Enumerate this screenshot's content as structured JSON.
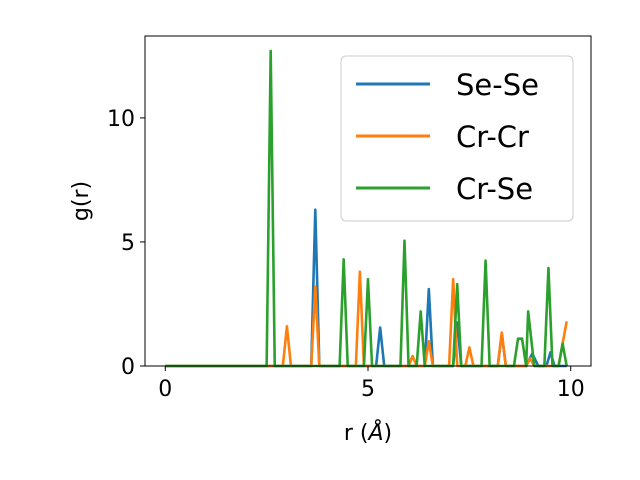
{
  "chart_data": {
    "type": "line",
    "xlabel": "r (",
    "xlabel_unit": "Å",
    "xlabel_close": ")",
    "ylabel": "g(r)",
    "xlim": [
      -0.5,
      10.5
    ],
    "ylim": [
      0,
      13.3
    ],
    "xticks": [
      0,
      5,
      10
    ],
    "yticks": [
      0,
      5,
      10
    ],
    "grid": false,
    "legend_position": "top-right",
    "series": [
      {
        "name": "Se-Se",
        "color": "#1f77b4",
        "points": [
          [
            0,
            0
          ],
          [
            3.6,
            0
          ],
          [
            3.7,
            6.3
          ],
          [
            3.8,
            0
          ],
          [
            5.2,
            0
          ],
          [
            5.3,
            1.55
          ],
          [
            5.4,
            0
          ],
          [
            6.4,
            0
          ],
          [
            6.5,
            3.1
          ],
          [
            6.6,
            0
          ],
          [
            7.1,
            0
          ],
          [
            7.2,
            1.75
          ],
          [
            7.3,
            0
          ],
          [
            8.2,
            0
          ],
          [
            8.3,
            1.3
          ],
          [
            8.4,
            0
          ],
          [
            8.9,
            0
          ],
          [
            9.05,
            0.5
          ],
          [
            9.2,
            0
          ],
          [
            9.4,
            0
          ],
          [
            9.5,
            0.55
          ],
          [
            9.6,
            0
          ],
          [
            9.9,
            0
          ]
        ]
      },
      {
        "name": "Cr-Cr",
        "color": "#ff7f0e",
        "points": [
          [
            0,
            0
          ],
          [
            2.9,
            0
          ],
          [
            3.0,
            1.6
          ],
          [
            3.1,
            0
          ],
          [
            3.6,
            0
          ],
          [
            3.7,
            3.2
          ],
          [
            3.8,
            0
          ],
          [
            4.7,
            0
          ],
          [
            4.8,
            3.8
          ],
          [
            4.9,
            0
          ],
          [
            6.0,
            0
          ],
          [
            6.1,
            0.4
          ],
          [
            6.2,
            0
          ],
          [
            6.4,
            0
          ],
          [
            6.5,
            1.0
          ],
          [
            6.6,
            0
          ],
          [
            7.0,
            0
          ],
          [
            7.1,
            3.5
          ],
          [
            7.2,
            0
          ],
          [
            7.4,
            0
          ],
          [
            7.5,
            0.75
          ],
          [
            7.6,
            0
          ],
          [
            8.2,
            0
          ],
          [
            8.3,
            1.35
          ],
          [
            8.4,
            0
          ],
          [
            8.9,
            0
          ],
          [
            9.0,
            0.3
          ],
          [
            9.1,
            0
          ],
          [
            9.7,
            0
          ],
          [
            9.9,
            1.8
          ]
        ]
      },
      {
        "name": "Cr-Se",
        "color": "#2ca02c",
        "points": [
          [
            0,
            0
          ],
          [
            2.5,
            0
          ],
          [
            2.6,
            12.7
          ],
          [
            2.7,
            0
          ],
          [
            4.3,
            0
          ],
          [
            4.4,
            4.3
          ],
          [
            4.5,
            0
          ],
          [
            4.9,
            0
          ],
          [
            5.0,
            3.5
          ],
          [
            5.1,
            0
          ],
          [
            5.8,
            0
          ],
          [
            5.9,
            5.05
          ],
          [
            6.0,
            0
          ],
          [
            6.2,
            0
          ],
          [
            6.3,
            2.2
          ],
          [
            6.4,
            0
          ],
          [
            7.1,
            0
          ],
          [
            7.2,
            3.3
          ],
          [
            7.3,
            0
          ],
          [
            7.8,
            0
          ],
          [
            7.9,
            4.25
          ],
          [
            8.0,
            0
          ],
          [
            8.6,
            0
          ],
          [
            8.7,
            1.1
          ],
          [
            8.8,
            1.1
          ],
          [
            8.9,
            0
          ],
          [
            8.95,
            2.2
          ],
          [
            9.1,
            0
          ],
          [
            9.2,
            0
          ],
          [
            9.35,
            0
          ],
          [
            9.45,
            3.95
          ],
          [
            9.55,
            0
          ],
          [
            9.7,
            0
          ],
          [
            9.8,
            0.9
          ],
          [
            9.9,
            0
          ]
        ]
      }
    ]
  }
}
